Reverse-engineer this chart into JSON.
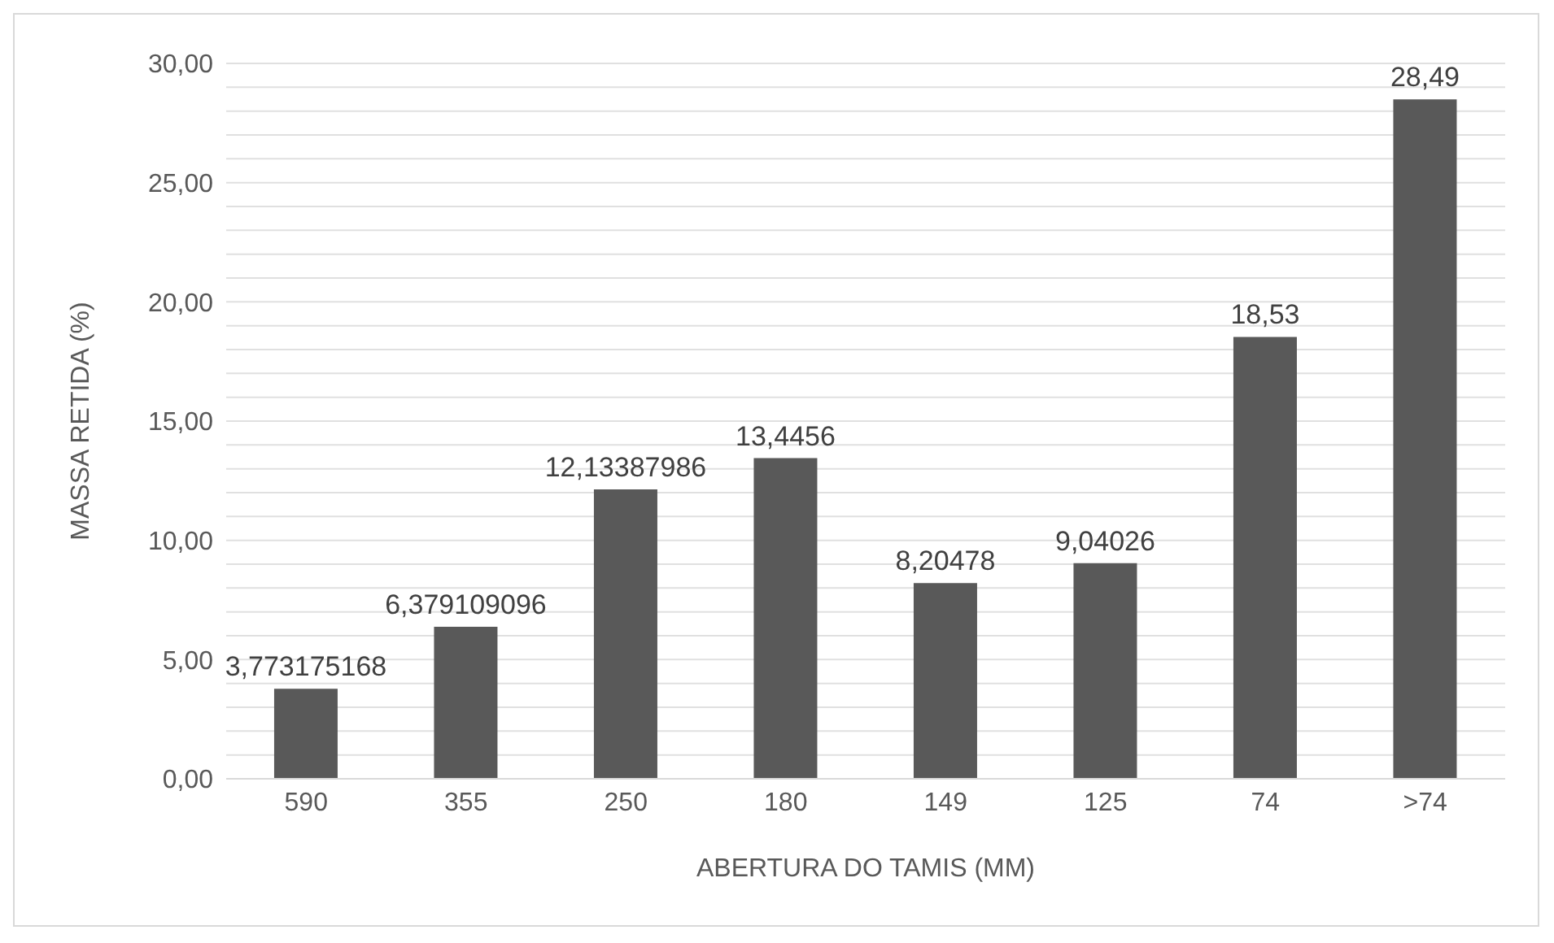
{
  "chart_data": {
    "type": "bar",
    "xlabel": "ABERTURA DO TAMIS (MM)",
    "ylabel": "MASSA RETIDA (%)",
    "categories": [
      "590",
      "355",
      "250",
      "180",
      "149",
      "125",
      "74",
      ">74"
    ],
    "values": [
      3.773175168,
      6.379109096,
      12.13387986,
      13.4456,
      8.20478,
      9.04026,
      18.53,
      28.49
    ],
    "value_labels": [
      "3,773175168",
      "6,379109096",
      "12,13387986",
      "13,4456",
      "8,20478",
      "9,04026",
      "18,53",
      "28,49"
    ],
    "color": "#595959",
    "ylim": [
      0,
      30
    ],
    "yticks": [
      {
        "value": 0,
        "label": "0,00"
      },
      {
        "value": 1,
        "label": null
      },
      {
        "value": 2,
        "label": null
      },
      {
        "value": 3,
        "label": null
      },
      {
        "value": 4,
        "label": null
      },
      {
        "value": 5,
        "label": "5,00"
      },
      {
        "value": 6,
        "label": null
      },
      {
        "value": 7,
        "label": null
      },
      {
        "value": 8,
        "label": null
      },
      {
        "value": 9,
        "label": null
      },
      {
        "value": 10,
        "label": "10,00"
      },
      {
        "value": 11,
        "label": null
      },
      {
        "value": 12,
        "label": null
      },
      {
        "value": 13,
        "label": null
      },
      {
        "value": 14,
        "label": null
      },
      {
        "value": 15,
        "label": "15,00"
      },
      {
        "value": 16,
        "label": null
      },
      {
        "value": 17,
        "label": null
      },
      {
        "value": 18,
        "label": null
      },
      {
        "value": 19,
        "label": null
      },
      {
        "value": 20,
        "label": "20,00"
      },
      {
        "value": 21,
        "label": null
      },
      {
        "value": 22,
        "label": null
      },
      {
        "value": 23,
        "label": null
      },
      {
        "value": 24,
        "label": null
      },
      {
        "value": 25,
        "label": "25,00"
      },
      {
        "value": 26,
        "label": null
      },
      {
        "value": 27,
        "label": null
      },
      {
        "value": 28,
        "label": null
      },
      {
        "value": 29,
        "label": null
      },
      {
        "value": 30,
        "label": "30,00"
      }
    ],
    "grid": "y"
  }
}
